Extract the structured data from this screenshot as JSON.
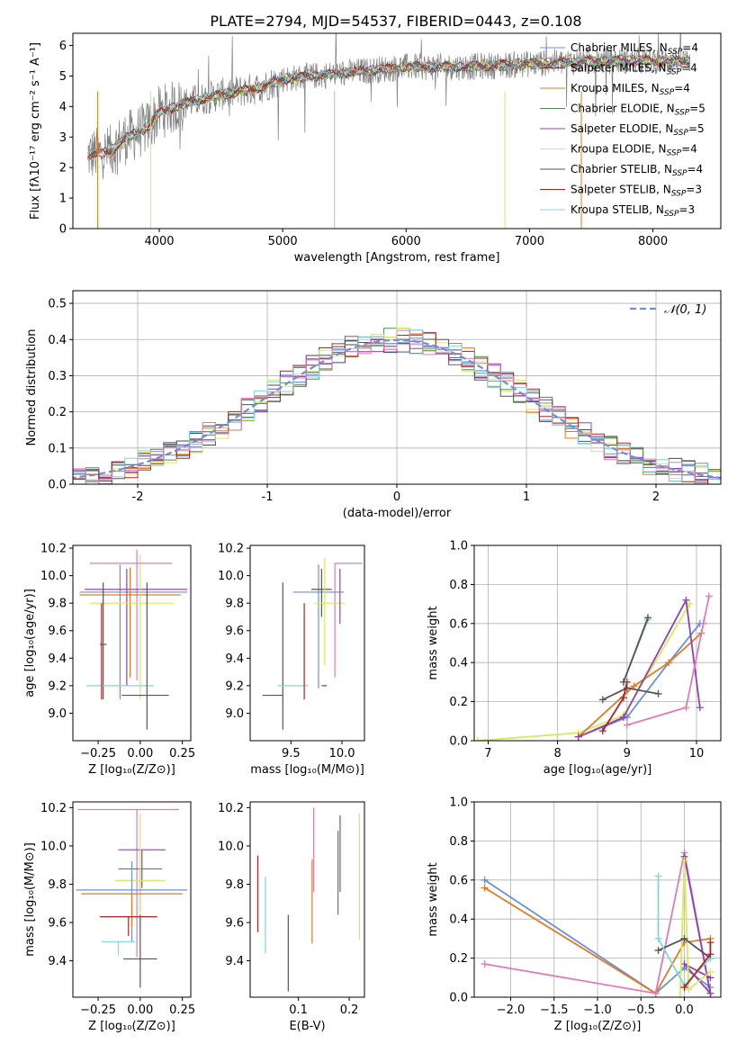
{
  "figure_title": "PLATE=2794, MJD=54537, FIBERID=0443, z=0.108",
  "colors": {
    "Chabrier MILES": "#6a8fdc",
    "Salpeter MILES": "#4a4a4a",
    "Kroupa MILES": "#e07b22",
    "Chabrier ELODIE": "#4f8a52",
    "Salpeter ELODIE": "#8e44ad",
    "Kroupa ELODIE": "#d7ea5a",
    "Chabrier STELIB": "#555555",
    "Salpeter STELIB": "#b22222",
    "Kroupa STELIB": "#7fd6de",
    "Normal": "#6a8fdc",
    "Pink": "#e07bb8",
    "Data": "#808080"
  },
  "chart_data": [
    {
      "id": "spectrum",
      "type": "line",
      "xlabel": "wavelength [Angstrom, rest frame]",
      "ylabel": "Flux [fλ10⁻¹⁷ erg cm⁻² s⁻¹ A⁻¹]",
      "xlim": [
        3300,
        8550
      ],
      "ylim": [
        0,
        6.4
      ],
      "xticks": [
        4000,
        5000,
        6000,
        7000,
        8000
      ],
      "yticks": [
        0,
        1,
        2,
        3,
        4,
        5,
        6
      ],
      "legend_loc": "upper right",
      "continuum": {
        "x": [
          3400,
          3600,
          3700,
          3900,
          4000,
          4200,
          4500,
          4800,
          5000,
          5500,
          6000,
          6500,
          7000,
          7500,
          8000,
          8300
        ],
        "y": [
          2.4,
          2.5,
          2.9,
          3.3,
          3.8,
          4.1,
          4.4,
          4.6,
          4.9,
          5.1,
          5.3,
          5.3,
          5.4,
          5.5,
          5.5,
          5.5
        ]
      },
      "series": [
        {
          "name": "Chabrier MILES, N_SSP=4",
          "label_main": "Chabrier MILES, N",
          "label_sub": "SSP",
          "label_end": "=4",
          "color_key": "Chabrier MILES"
        },
        {
          "name": "Salpeter MILES, N_SSP=4",
          "label_main": "Salpeter MILES, N",
          "label_sub": "SSP",
          "label_end": "=4",
          "color_key": "Salpeter MILES"
        },
        {
          "name": "Kroupa MILES, N_SSP=4",
          "label_main": "Kroupa MILES, N",
          "label_sub": "SSP",
          "label_end": "=4",
          "color_key": "Kroupa MILES"
        },
        {
          "name": "Chabrier ELODIE, N_SSP=5",
          "label_main": "Chabrier ELODIE, N",
          "label_sub": "SSP",
          "label_end": "=5",
          "color_key": "Chabrier ELODIE"
        },
        {
          "name": "Salpeter ELODIE, N_SSP=5",
          "label_main": "Salpeter ELODIE, N",
          "label_sub": "SSP",
          "label_end": "=5",
          "color_key": "Salpeter ELODIE"
        },
        {
          "name": "Kroupa ELODIE, N_SSP=4",
          "label_main": "Kroupa ELODIE, N",
          "label_sub": "SSP",
          "label_end": "=4",
          "color_key": "Kroupa ELODIE"
        },
        {
          "name": "Chabrier STELIB, N_SSP=4",
          "label_main": "Chabrier STELIB, N",
          "label_sub": "SSP",
          "label_end": "=4",
          "color_key": "Chabrier STELIB"
        },
        {
          "name": "Salpeter STELIB, N_SSP=3",
          "label_main": "Salpeter STELIB, N",
          "label_sub": "SSP",
          "label_end": "=3",
          "color_key": "Salpeter STELIB"
        },
        {
          "name": "Kroupa STELIB, N_SSP=3",
          "label_main": "Kroupa STELIB, N",
          "label_sub": "SSP",
          "label_end": "=3",
          "color_key": "Kroupa STELIB"
        }
      ]
    },
    {
      "id": "residuals",
      "type": "histogram",
      "xlabel": "(data-model)/error",
      "ylabel": "Normed distribution",
      "xlim": [
        -2.5,
        2.5
      ],
      "ylim": [
        0,
        0.535
      ],
      "xticks": [
        -2,
        -1,
        0,
        1,
        2
      ],
      "yticks": [
        0.0,
        0.1,
        0.2,
        0.3,
        0.4,
        0.5
      ],
      "grid": true,
      "legend": "𝒩(0, 1)",
      "legend_loc": "upper right",
      "bin_width": 0.1
    },
    {
      "id": "age_vs_Z",
      "type": "errorbar",
      "xlabel": "Z [log₁₀(Z/Z⊙)]",
      "ylabel": "age  [log₁₀(age/yr)]",
      "xlim": [
        -0.4,
        0.3
      ],
      "ylim": [
        8.8,
        10.22
      ],
      "xticks": [
        -0.25,
        0.0,
        0.25
      ],
      "xtick_labels": [
        "−0.25",
        "0.00",
        "0.25"
      ],
      "yticks": [
        9.0,
        9.2,
        9.4,
        9.6,
        9.8,
        10.0,
        10.2
      ],
      "points": [
        {
          "c": "Pink",
          "x": -0.02,
          "xerr": [
            0.28,
            0.21
          ],
          "y": 10.09,
          "yerr": [
            0.85,
            0.1
          ]
        },
        {
          "c": "Chabrier MILES",
          "x": -0.12,
          "xerr": [
            0.24,
            0.4
          ],
          "y": 9.88,
          "yerr": [
            0.78,
            0.2
          ]
        },
        {
          "c": "Salpeter ELODIE",
          "x": -0.08,
          "xerr": [
            0.25,
            0.36
          ],
          "y": 9.9,
          "yerr": [
            0.7,
            0.15
          ]
        },
        {
          "c": "Kroupa MILES",
          "x": -0.06,
          "xerr": [
            0.3,
            0.3
          ],
          "y": 9.86,
          "yerr": [
            0.6,
            0.2
          ]
        },
        {
          "c": "Kroupa ELODIE",
          "x": 0.0,
          "xerr": [
            0.3,
            0.2
          ],
          "y": 9.8,
          "yerr": [
            0.7,
            0.35
          ]
        },
        {
          "c": "Chabrier STELIB",
          "x": -0.22,
          "xerr": [
            0.02,
            0.02
          ],
          "y": 9.5,
          "yerr": [
            0.4,
            0.45
          ]
        },
        {
          "c": "Kroupa STELIB",
          "x": -0.12,
          "xerr": [
            0.2,
            0.2
          ],
          "y": 9.2,
          "yerr": [
            0.0,
            0.0
          ]
        },
        {
          "c": "Chabrier STELIB",
          "x": 0.04,
          "xerr": [
            0.15,
            0.13
          ],
          "y": 9.13,
          "yerr": [
            0.25,
            0.82
          ]
        },
        {
          "c": "Salpeter STELIB",
          "x": -0.23,
          "xerr": [
            0.0,
            0.0
          ],
          "y": 9.5,
          "yerr": [
            0.4,
            0.3
          ]
        }
      ]
    },
    {
      "id": "age_vs_mass",
      "type": "errorbar",
      "xlabel": "mass [log₁₀(M/M⊙)]",
      "xlim": [
        9.1,
        10.22
      ],
      "ylim": [
        8.8,
        10.22
      ],
      "xticks": [
        9.5,
        10.0
      ],
      "yticks": [
        9.0,
        9.2,
        9.4,
        9.6,
        9.8,
        10.0,
        10.2
      ],
      "points": [
        {
          "c": "Pink",
          "x": 9.93,
          "xerr": [
            0.0,
            0.27
          ],
          "y": 10.09,
          "yerr": [
            0.83,
            0.0
          ]
        },
        {
          "c": "Chabrier MILES",
          "x": 9.77,
          "xerr": [
            0.25,
            0.25
          ],
          "y": 9.88,
          "yerr": [
            0.7,
            0.2
          ]
        },
        {
          "c": "Chabrier STELIB",
          "x": 9.8,
          "xerr": [
            0.1,
            0.1
          ],
          "y": 9.9,
          "yerr": [
            0.2,
            0.15
          ]
        },
        {
          "c": "Kroupa ELODIE",
          "x": 9.83,
          "xerr": [
            0.1,
            0.2
          ],
          "y": 9.8,
          "yerr": [
            0.45,
            0.33
          ]
        },
        {
          "c": "Salpeter ELODIE",
          "x": 9.98,
          "xerr": [
            0.0,
            0.0
          ],
          "y": 9.9,
          "yerr": [
            0.25,
            0.15
          ]
        },
        {
          "c": "Chabrier STELIB",
          "x": 9.42,
          "xerr": [
            0.2,
            0.0
          ],
          "y": 9.13,
          "yerr": [
            0.25,
            0.82
          ]
        },
        {
          "c": "Kroupa STELIB",
          "x": 9.52,
          "xerr": [
            0.15,
            0.15
          ],
          "y": 9.2,
          "yerr": [
            0.0,
            0.0
          ]
        },
        {
          "c": "Salpeter STELIB",
          "x": 9.63,
          "xerr": [
            0.0,
            0.0
          ],
          "y": 9.5,
          "yerr": [
            0.4,
            0.3
          ]
        },
        {
          "c": "Salpeter STELIB",
          "x": 9.85,
          "xerr": [
            0.05,
            0.0
          ],
          "y": 9.2,
          "yerr": [
            0.0,
            0.0
          ]
        }
      ]
    },
    {
      "id": "weight_vs_age",
      "type": "line",
      "xlabel": "age  [log₁₀(age/yr)]",
      "ylabel": "mass weight",
      "xlim": [
        6.8,
        10.35
      ],
      "ylim": [
        0,
        1.0
      ],
      "xticks": [
        7,
        8,
        9,
        10
      ],
      "yticks": [
        0.0,
        0.2,
        0.4,
        0.6,
        0.8,
        1.0
      ],
      "grid": true,
      "series": [
        {
          "c": "Kroupa ELODIE",
          "x": [
            6.85,
            8.3,
            8.95,
            9.9
          ],
          "y": [
            0.0,
            0.04,
            0.13,
            0.7
          ]
        },
        {
          "c": "Chabrier MILES",
          "x": [
            8.3,
            9.0,
            9.6,
            10.05
          ],
          "y": [
            0.02,
            0.12,
            0.4,
            0.6
          ]
        },
        {
          "c": "Kroupa MILES",
          "x": [
            8.3,
            9.1,
            9.6,
            10.07
          ],
          "y": [
            0.02,
            0.28,
            0.4,
            0.55
          ]
        },
        {
          "c": "Salpeter ELODIE",
          "x": [
            8.3,
            8.95,
            9.85,
            10.05
          ],
          "y": [
            0.02,
            0.12,
            0.72,
            0.17
          ]
        },
        {
          "c": "Pink",
          "x": [
            9.0,
            9.85,
            10.1,
            10.18
          ],
          "y": [
            0.08,
            0.17,
            0.6,
            0.74
          ]
        },
        {
          "c": "Chabrier STELIB",
          "x": [
            8.65,
            9.0,
            9.45
          ],
          "y": [
            0.21,
            0.27,
            0.24
          ]
        },
        {
          "c": "Salpeter STELIB",
          "x": [
            8.65,
            8.95,
            9.0
          ],
          "y": [
            0.05,
            0.22,
            0.3
          ]
        },
        {
          "c": "Kroupa STELIB",
          "x": [
            8.95,
            9.3
          ],
          "y": [
            0.3,
            0.62
          ]
        },
        {
          "c": "Chabrier STELIB",
          "x": [
            8.95,
            9.3
          ],
          "y": [
            0.3,
            0.63
          ]
        }
      ]
    },
    {
      "id": "mass_vs_Z",
      "type": "errorbar",
      "xlabel": "Z [log₁₀(Z/Z⊙)]",
      "ylabel": "mass [log₁₀(M/M⊙)]",
      "xlim": [
        -0.4,
        0.3
      ],
      "ylim": [
        9.21,
        10.23
      ],
      "xticks": [
        -0.25,
        0.0,
        0.25
      ],
      "xtick_labels": [
        "−0.25",
        "0.00",
        "0.25"
      ],
      "yticks": [
        9.4,
        9.6,
        9.8,
        10.0,
        10.2
      ],
      "points": [
        {
          "c": "Pink",
          "x": -0.02,
          "xerr": [
            0.35,
            0.25
          ],
          "y": 10.19,
          "yerr": [
            0.77,
            0.0
          ]
        },
        {
          "c": "Salpeter ELODIE",
          "x": 0.01,
          "xerr": [
            0.14,
            0.14
          ],
          "y": 9.98,
          "yerr": [
            0.2,
            0.0
          ]
        },
        {
          "c": "Chabrier ELODIE",
          "x": 0.0,
          "xerr": [
            0.13,
            0.13
          ],
          "y": 9.88,
          "yerr": [
            0.22,
            0.0
          ]
        },
        {
          "c": "Kroupa ELODIE",
          "x": 0.0,
          "xerr": [
            0.15,
            0.15
          ],
          "y": 9.82,
          "yerr": [
            0.25,
            0.35
          ]
        },
        {
          "c": "Chabrier MILES",
          "x": -0.05,
          "xerr": [
            0.33,
            0.33
          ],
          "y": 9.77,
          "yerr": [
            0.27,
            0.15
          ]
        },
        {
          "c": "Kroupa MILES",
          "x": -0.05,
          "xerr": [
            0.3,
            0.3
          ],
          "y": 9.75,
          "yerr": [
            0.17,
            0.0
          ]
        },
        {
          "c": "Salpeter STELIB",
          "x": -0.07,
          "xerr": [
            0.17,
            0.17
          ],
          "y": 9.63,
          "yerr": [
            0.1,
            0.0
          ]
        },
        {
          "c": "Kroupa STELIB",
          "x": -0.13,
          "xerr": [
            0.1,
            0.1
          ],
          "y": 9.5,
          "yerr": [
            0.07,
            0.0
          ]
        },
        {
          "c": "Chabrier STELIB",
          "x": 0.0,
          "xerr": [
            0.1,
            0.1
          ],
          "y": 9.41,
          "yerr": [
            0.15,
            0.23
          ]
        }
      ]
    },
    {
      "id": "mass_vs_ebv",
      "type": "errorbar",
      "xlabel": "E(B-V)",
      "xlim": [
        0.005,
        0.23
      ],
      "ylim": [
        9.21,
        10.23
      ],
      "xticks": [
        0.1,
        0.2
      ],
      "yticks": [
        9.4,
        9.6,
        9.8,
        10.0,
        10.2
      ],
      "points": [
        {
          "c": "Salpeter STELIB",
          "x": 0.02,
          "y": 9.75,
          "yerr": [
            0.2,
            0.2
          ]
        },
        {
          "c": "Kroupa STELIB",
          "x": 0.035,
          "y": 9.64,
          "yerr": [
            0.2,
            0.2
          ]
        },
        {
          "c": "Chabrier STELIB",
          "x": 0.08,
          "y": 9.44,
          "yerr": [
            0.2,
            0.2
          ]
        },
        {
          "c": "Kroupa MILES",
          "x": 0.127,
          "y": 9.71,
          "yerr": [
            0.22,
            0.22
          ]
        },
        {
          "c": "Pink",
          "x": 0.13,
          "y": 9.98,
          "yerr": [
            0.22,
            0.22
          ]
        },
        {
          "c": "Chabrier ELODIE",
          "x": 0.178,
          "y": 9.86,
          "yerr": [
            0.22,
            0.22
          ]
        },
        {
          "c": "Salpeter ELODIE",
          "x": 0.182,
          "y": 9.96,
          "yerr": [
            0.2,
            0.2
          ]
        },
        {
          "c": "Kroupa ELODIE",
          "x": 0.22,
          "y": 9.84,
          "yerr": [
            0.33,
            0.33
          ]
        }
      ]
    },
    {
      "id": "weight_vs_Z",
      "type": "line",
      "xlabel": "Z [log₁₀(Z/Z⊙)]",
      "ylabel": "mass weight",
      "xlim": [
        -2.42,
        0.42
      ],
      "ylim": [
        0,
        1.0
      ],
      "xticks": [
        -2.0,
        -1.5,
        -1.0,
        -0.5,
        0.0
      ],
      "xtick_labels": [
        "−2.0",
        "−1.5",
        "−1.0",
        "−0.5",
        "0.0"
      ],
      "yticks": [
        0.0,
        0.2,
        0.4,
        0.6,
        0.8,
        1.0
      ],
      "grid": true,
      "series": [
        {
          "c": "Chabrier MILES",
          "x": [
            -2.3,
            -0.33,
            0.0,
            0.3
          ],
          "y": [
            0.6,
            0.02,
            0.15,
            0.05
          ]
        },
        {
          "c": "Kroupa MILES",
          "x": [
            -2.3,
            -0.33,
            0.0,
            0.3
          ],
          "y": [
            0.56,
            0.02,
            0.28,
            0.3
          ]
        },
        {
          "c": "Pink",
          "x": [
            -2.3,
            -0.33,
            0.0,
            0.3
          ],
          "y": [
            0.17,
            0.02,
            0.74,
            0.02
          ]
        },
        {
          "c": "Salpeter ELODIE",
          "x": [
            0.0,
            0.3,
            0.0,
            0.3
          ],
          "y": [
            0.72,
            0.02,
            0.17,
            0.1
          ]
        },
        {
          "c": "Kroupa ELODIE",
          "x": [
            -0.05,
            0.0,
            0.05,
            0.3
          ],
          "y": [
            0.0,
            0.7,
            0.04,
            0.13
          ]
        },
        {
          "c": "Chabrier STELIB",
          "x": [
            -0.3,
            0.0,
            0.3
          ],
          "y": [
            0.24,
            0.3,
            0.2
          ]
        },
        {
          "c": "Kroupa STELIB",
          "x": [
            -0.3,
            -0.3,
            0.0,
            0.3
          ],
          "y": [
            0.62,
            0.3,
            0.06,
            0.2
          ]
        },
        {
          "c": "Salpeter STELIB",
          "x": [
            0.0,
            0.3,
            0.3
          ],
          "y": [
            0.05,
            0.22,
            0.28
          ]
        }
      ]
    }
  ]
}
